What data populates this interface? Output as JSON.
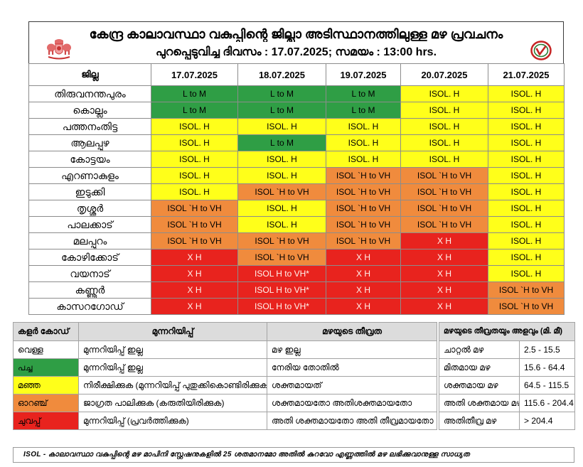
{
  "header": {
    "title": "കേന്ദ്ര കാലാവസ്ഥാ വകുപ്പിന്റെ ജില്ലാ അടിസ്ഥാനത്തിലുള്ള മഴ പ്രവചനം",
    "issued": "പുറപ്പെടുവിച്ച ദിവസം : 17.07.2025; സമയം : 13:00 hrs.",
    "logos": {
      "left": "kerala-emblem",
      "right": "imd-logo"
    }
  },
  "colors": {
    "white": "#ffffff",
    "green": "#2f9e45",
    "yellow": "#ffff1a",
    "orange": "#f08b3d",
    "red": "#e8231e"
  },
  "forecast": {
    "district_header": "ജില്ല",
    "dates": [
      "17.07.2025",
      "18.07.2025",
      "19.07.2025",
      "20.07.2025",
      "21.07.2025"
    ],
    "rows": [
      {
        "district": "തിരുവനന്തപുരം",
        "cells": [
          {
            "text": "L to M",
            "level": "green"
          },
          {
            "text": "L to M",
            "level": "green"
          },
          {
            "text": "L to M",
            "level": "green"
          },
          {
            "text": "ISOL. H",
            "level": "yellow"
          },
          {
            "text": "ISOL. H",
            "level": "yellow"
          }
        ]
      },
      {
        "district": "കൊല്ലം",
        "cells": [
          {
            "text": "L to M",
            "level": "green"
          },
          {
            "text": "L to M",
            "level": "green"
          },
          {
            "text": "L to M",
            "level": "green"
          },
          {
            "text": "ISOL. H",
            "level": "yellow"
          },
          {
            "text": "ISOL. H",
            "level": "yellow"
          }
        ]
      },
      {
        "district": "പത്തനംതിട്ട",
        "cells": [
          {
            "text": "ISOL. H",
            "level": "yellow"
          },
          {
            "text": "ISOL. H",
            "level": "yellow"
          },
          {
            "text": "ISOL. H",
            "level": "yellow"
          },
          {
            "text": "ISOL. H",
            "level": "yellow"
          },
          {
            "text": "ISOL. H",
            "level": "yellow"
          }
        ]
      },
      {
        "district": "ആലപ്പുഴ",
        "cells": [
          {
            "text": "ISOL. H",
            "level": "yellow"
          },
          {
            "text": "L to M",
            "level": "green"
          },
          {
            "text": "ISOL. H",
            "level": "yellow"
          },
          {
            "text": "ISOL. H",
            "level": "yellow"
          },
          {
            "text": "ISOL. H",
            "level": "yellow"
          }
        ]
      },
      {
        "district": "കോട്ടയം",
        "cells": [
          {
            "text": "ISOL. H",
            "level": "yellow"
          },
          {
            "text": "ISOL. H",
            "level": "yellow"
          },
          {
            "text": "ISOL. H",
            "level": "yellow"
          },
          {
            "text": "ISOL. H",
            "level": "yellow"
          },
          {
            "text": "ISOL. H",
            "level": "yellow"
          }
        ]
      },
      {
        "district": "എറണാകുളം",
        "cells": [
          {
            "text": "ISOL. H",
            "level": "yellow"
          },
          {
            "text": "ISOL. H",
            "level": "yellow"
          },
          {
            "text": "ISOL `H to VH",
            "level": "orange"
          },
          {
            "text": "ISOL `H to VH",
            "level": "orange"
          },
          {
            "text": "ISOL. H",
            "level": "yellow"
          }
        ]
      },
      {
        "district": "ഇടുക്കി",
        "cells": [
          {
            "text": "ISOL. H",
            "level": "yellow"
          },
          {
            "text": "ISOL `H to VH",
            "level": "orange"
          },
          {
            "text": "ISOL `H to VH",
            "level": "orange"
          },
          {
            "text": "ISOL `H to VH",
            "level": "orange"
          },
          {
            "text": "ISOL. H",
            "level": "yellow"
          }
        ]
      },
      {
        "district": "തൃശ്ശൂർ",
        "cells": [
          {
            "text": "ISOL `H to VH",
            "level": "orange"
          },
          {
            "text": "ISOL. H",
            "level": "yellow"
          },
          {
            "text": "ISOL `H to VH",
            "level": "orange"
          },
          {
            "text": "ISOL `H to VH",
            "level": "orange"
          },
          {
            "text": "ISOL. H",
            "level": "yellow"
          }
        ]
      },
      {
        "district": "പാലക്കാട്",
        "cells": [
          {
            "text": "ISOL `H to VH",
            "level": "orange"
          },
          {
            "text": "ISOL. H",
            "level": "yellow"
          },
          {
            "text": "ISOL `H to VH",
            "level": "orange"
          },
          {
            "text": "ISOL `H to VH",
            "level": "orange"
          },
          {
            "text": "ISOL. H",
            "level": "yellow"
          }
        ]
      },
      {
        "district": "മലപ്പുറം",
        "cells": [
          {
            "text": "ISOL `H to VH",
            "level": "orange"
          },
          {
            "text": "ISOL `H to VH",
            "level": "orange"
          },
          {
            "text": "ISOL `H to VH",
            "level": "orange"
          },
          {
            "text": "X H",
            "level": "red"
          },
          {
            "text": "ISOL. H",
            "level": "yellow"
          }
        ]
      },
      {
        "district": "കോഴിക്കോട്",
        "cells": [
          {
            "text": "X H",
            "level": "red"
          },
          {
            "text": "ISOL `H to VH",
            "level": "orange"
          },
          {
            "text": "X H",
            "level": "red"
          },
          {
            "text": "X H",
            "level": "red"
          },
          {
            "text": "ISOL. H",
            "level": "yellow"
          }
        ]
      },
      {
        "district": "വയനാട്",
        "cells": [
          {
            "text": "X H",
            "level": "red"
          },
          {
            "text": "ISOL H to VH*",
            "level": "red"
          },
          {
            "text": "X H",
            "level": "red"
          },
          {
            "text": "X H",
            "level": "red"
          },
          {
            "text": "ISOL. H",
            "level": "yellow"
          }
        ]
      },
      {
        "district": "കണ്ണൂർ",
        "cells": [
          {
            "text": "X H",
            "level": "red"
          },
          {
            "text": "ISOL H to VH*",
            "level": "red"
          },
          {
            "text": "X H",
            "level": "red"
          },
          {
            "text": "X H",
            "level": "red"
          },
          {
            "text": "ISOL `H to VH",
            "level": "orange"
          }
        ]
      },
      {
        "district": "കാസറഗോഡ്",
        "cells": [
          {
            "text": "X H",
            "level": "red"
          },
          {
            "text": "ISOL H to VH*",
            "level": "red"
          },
          {
            "text": "X H",
            "level": "red"
          },
          {
            "text": "X H",
            "level": "red"
          },
          {
            "text": "ISOL `H to VH",
            "level": "orange"
          }
        ]
      }
    ]
  },
  "legend": {
    "headers": {
      "color_code": "കളർ കോഡ്",
      "warning": "മുന്നറിയിപ്പ്",
      "intensity": "മഴയുടെ തീവ്രത"
    },
    "rows": [
      {
        "color_name": "വെള്ള",
        "level": "white",
        "warning": "മുന്നറിയിപ്പ് ഇല്ല",
        "intensity": "മഴ ഇല്ല"
      },
      {
        "color_name": "പച്ച",
        "level": "green",
        "warning": "മുന്നറിയിപ്പ് ഇല്ല",
        "intensity": "നേരിയ തോതിൽ"
      },
      {
        "color_name": "മഞ്ഞ",
        "level": "yellow",
        "warning": "നിരീക്ഷിക്കുക (മുന്നറിയിപ്പ് പുതുക്കികൊണ്ടിരിക്കുക)",
        "intensity": "ശക്തമായത്"
      },
      {
        "color_name": "ഓറഞ്ച്",
        "level": "orange",
        "warning": "ജാഗ്രത പാലിക്കുക (കരുതിയിരിക്കുക)",
        "intensity": "ശക്തമായതോ അതിശക്തമായതോ"
      },
      {
        "color_name": "ചുവപ്പ്",
        "level": "red",
        "warning": "മുന്നറിയിപ്പ് (പ്രവർത്തിക്കുക)",
        "intensity": "അതി ശക്തമായതോ അതി തീവ്രമായതോ"
      }
    ]
  },
  "rain_scale": {
    "header": "മഴയുടെ തീവ്രതയും അളവും (മി. മീ)",
    "rows": [
      {
        "type": "ചാറ്റൽ മഴ",
        "range": "2.5 - 15.5"
      },
      {
        "type": "മിതമായ മഴ",
        "range": "15.6 - 64.4"
      },
      {
        "type": "ശക്തമായ മഴ",
        "range": "64.5 - 115.5"
      },
      {
        "type": "അതി ശക്തമായ മഴ",
        "range": "115.6 - 204.4"
      },
      {
        "type": "അതിതീവ്ര മഴ",
        "range": ">  204.4"
      }
    ]
  },
  "footnote": "ISOL - കാലാവസ്ഥാ വകുപ്പിന്റെ മഴ മാപിനി സ്റ്റേഷനുകളിൽ 25 ശതമാനമോ അതിൽ കുറവോ എണ്ണത്തിൽ മഴ ലഭിക്കുവാനുള്ള സാധ്യത"
}
